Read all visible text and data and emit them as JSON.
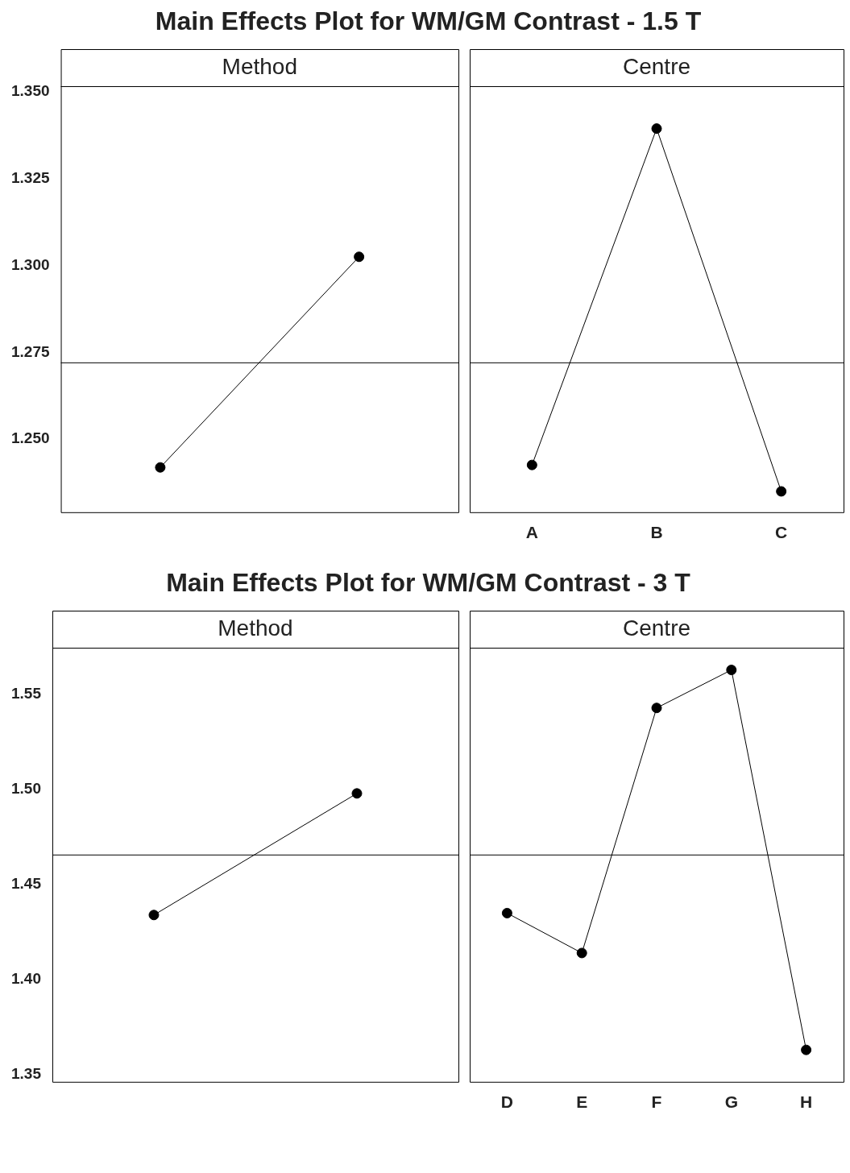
{
  "chart_data": [
    {
      "type": "line",
      "title": "Main Effects Plot for WM/GM Contrast - 1.5 T",
      "subtitle": "Method",
      "categories": [
        null,
        null
      ],
      "values": [
        1.2419,
        1.3025
      ],
      "color": "#000000",
      "marker": "circle",
      "ylim": [
        1.229,
        1.3516
      ],
      "yticks": [
        {
          "value": 1.25,
          "label": "1.250"
        },
        {
          "value": 1.275,
          "label": "1.275"
        },
        {
          "value": 1.3,
          "label": "1.300"
        },
        {
          "value": 1.325,
          "label": "1.325"
        },
        {
          "value": 1.35,
          "label": "1.350"
        }
      ],
      "ref_lines": [
        {
          "axis": "y",
          "value": 1.272
        }
      ],
      "grid": false,
      "legend": false
    },
    {
      "type": "line",
      "subtitle": "Centre",
      "categories": [
        "A",
        "B",
        "C"
      ],
      "values": [
        1.2426,
        1.3394,
        1.235
      ],
      "color": "#000000",
      "marker": "circle",
      "ylim": [
        1.229,
        1.3516
      ],
      "tick_labels": "x",
      "ref_lines": [
        {
          "axis": "y",
          "value": 1.272
        }
      ],
      "grid": false,
      "legend": false
    },
    {
      "type": "line",
      "title": "Main Effects Plot for WM/GM Contrast - 3 T",
      "subtitle": "Method",
      "categories": [
        null,
        null
      ],
      "values": [
        1.434,
        1.498
      ],
      "color": "#000000",
      "marker": "circle",
      "ylim": [
        1.3462,
        1.5747
      ],
      "yticks": [
        1.35,
        {
          "value": 1.4,
          "label": "1.40"
        },
        1.45,
        {
          "value": 1.5,
          "label": "1.50"
        },
        1.55
      ],
      "ref_lines": [
        {
          "axis": "y",
          "value": 1.4656
        }
      ],
      "grid": false,
      "legend": false
    },
    {
      "type": "line",
      "subtitle": "Centre",
      "categories": [
        "D",
        "E",
        "F",
        "G",
        "H"
      ],
      "values": [
        1.435,
        1.414,
        1.543,
        1.563,
        1.363
      ],
      "color": "#000000",
      "marker": "circle",
      "ylim": [
        1.3462,
        1.5747
      ],
      "tick_labels": "x",
      "ref_lines": [
        {
          "axis": "y",
          "value": 1.4656
        }
      ],
      "grid": false,
      "legend": false
    }
  ]
}
